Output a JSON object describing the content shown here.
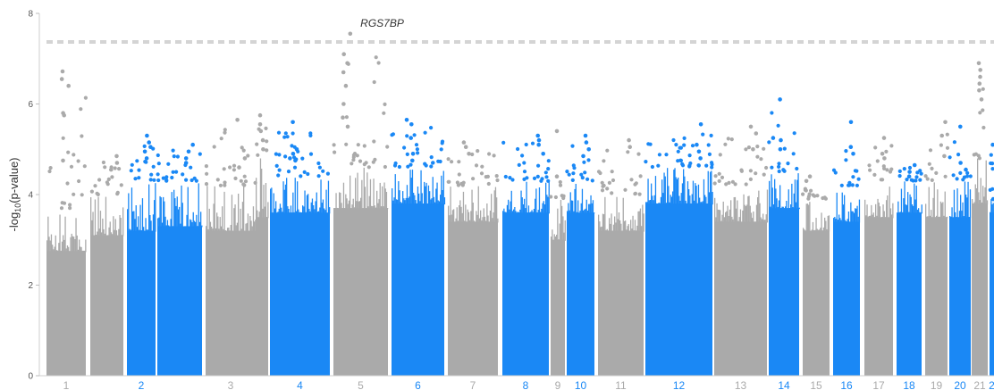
{
  "chart_data": {
    "type": "scatter",
    "variant": "manhattan",
    "title": "",
    "xlabel": "",
    "ylabel_prefix": "-log",
    "ylabel_sub": "10",
    "ylabel_suffix": "(p-value)",
    "ylim": [
      0,
      8
    ],
    "yticks": [
      "0",
      "2",
      "4",
      "6",
      "8"
    ],
    "grid": false,
    "legend": "none",
    "threshold": 7.3,
    "colors": {
      "gray": "#aaaaaa",
      "blue": "#1a88f5",
      "threshold": "#d4d4d4"
    },
    "chromosomes": [
      {
        "label": "1",
        "color": "gray",
        "min": 0,
        "band": 2.75,
        "p95": 3.7,
        "max": 6.72,
        "peaks": [
          6.72,
          6.55,
          6.4,
          5.8,
          5.75,
          4.75
        ]
      },
      {
        "label": "",
        "color": "gray",
        "min": 0,
        "band": 3.1,
        "p95": 4.0,
        "max": 4.85,
        "peaks": [
          4.85,
          4.7,
          4.55
        ]
      },
      {
        "label": "2",
        "color": "blue",
        "min": 0,
        "band": 3.2,
        "p95": 4.3,
        "max": 5.3,
        "peaks": [
          5.3,
          5.15,
          5.05,
          4.95,
          4.8
        ]
      },
      {
        "label": "",
        "color": "blue",
        "min": 0,
        "band": 3.3,
        "p95": 4.3,
        "max": 5.1,
        "peaks": [
          5.1,
          4.95,
          4.8,
          4.7
        ]
      },
      {
        "label": "3",
        "color": "gray",
        "min": 0,
        "band": 3.2,
        "p95": 4.2,
        "max": 5.65,
        "peaks": [
          5.65,
          4.8,
          4.6
        ]
      },
      {
        "label": "",
        "color": "gray",
        "min": 0,
        "band": 3.5,
        "p95": 4.8,
        "max": 5.75,
        "peaks": [
          5.75,
          5.55,
          5.4,
          5.2,
          5.0
        ]
      },
      {
        "label": "4",
        "color": "blue",
        "min": 0,
        "band": 3.6,
        "p95": 4.4,
        "max": 5.6,
        "peaks": [
          5.6,
          5.0,
          4.9,
          4.8,
          4.75
        ]
      },
      {
        "label": "5",
        "color": "gray",
        "min": 0,
        "band": 3.7,
        "p95": 4.6,
        "max": 7.55,
        "peaks": [
          7.55,
          7.1,
          6.9,
          6.7,
          6.4,
          6.0,
          5.7,
          5.5
        ]
      },
      {
        "label": "6",
        "color": "blue",
        "min": 0,
        "band": 3.8,
        "p95": 4.6,
        "max": 5.65,
        "peaks": [
          5.65,
          5.55,
          5.25,
          4.9,
          4.75
        ]
      },
      {
        "label": "7",
        "color": "gray",
        "min": 0,
        "band": 3.4,
        "p95": 4.2,
        "max": 5.15,
        "peaks": [
          5.15,
          5.05,
          4.9
        ]
      },
      {
        "label": "8",
        "color": "blue",
        "min": 0,
        "band": 3.6,
        "p95": 4.3,
        "max": 5.3,
        "peaks": [
          5.3,
          5.2,
          5.1,
          4.9
        ]
      },
      {
        "label": "9",
        "color": "gray",
        "min": 0,
        "band": 3.0,
        "p95": 3.9,
        "max": 5.4,
        "peaks": [
          5.4,
          4.4
        ]
      },
      {
        "label": "10",
        "color": "blue",
        "min": 0,
        "band": 3.6,
        "p95": 4.3,
        "max": 5.3,
        "peaks": [
          5.3,
          5.15,
          5.0,
          4.85
        ]
      },
      {
        "label": "11",
        "color": "gray",
        "min": 0,
        "band": 3.2,
        "p95": 4.0,
        "max": 5.2,
        "peaks": [
          5.2,
          5.05
        ]
      },
      {
        "label": "12",
        "color": "blue",
        "min": 0,
        "band": 3.8,
        "p95": 4.6,
        "max": 5.55,
        "peaks": [
          5.55,
          5.1,
          4.95,
          4.8
        ]
      },
      {
        "label": "13",
        "color": "gray",
        "min": 0,
        "band": 3.4,
        "p95": 4.2,
        "max": 5.5,
        "peaks": [
          5.5,
          5.35,
          5.0
        ]
      },
      {
        "label": "14",
        "color": "blue",
        "min": 0,
        "band": 3.7,
        "p95": 4.5,
        "max": 6.1,
        "peaks": [
          6.1,
          5.25,
          5.2,
          5.0
        ]
      },
      {
        "label": "15",
        "color": "gray",
        "min": 0,
        "band": 3.2,
        "p95": 3.9,
        "max": 4.4,
        "peaks": [
          4.4,
          4.3
        ]
      },
      {
        "label": "16",
        "color": "blue",
        "min": 0,
        "band": 3.4,
        "p95": 4.2,
        "max": 5.6,
        "peaks": [
          5.6,
          5.05,
          4.9
        ]
      },
      {
        "label": "17",
        "color": "gray",
        "min": 0,
        "band": 3.5,
        "p95": 4.3,
        "max": 5.25,
        "peaks": [
          5.25,
          4.9,
          4.8
        ]
      },
      {
        "label": "18",
        "color": "blue",
        "min": 0,
        "band": 3.6,
        "p95": 4.3,
        "max": 4.65,
        "peaks": [
          4.65,
          4.5,
          4.4
        ]
      },
      {
        "label": "19",
        "color": "gray",
        "min": 0,
        "band": 3.5,
        "p95": 4.3,
        "max": 5.6,
        "peaks": [
          5.6,
          5.3,
          4.85
        ]
      },
      {
        "label": "20",
        "color": "blue",
        "min": 0,
        "band": 3.5,
        "p95": 4.3,
        "max": 5.5,
        "peaks": [
          5.5,
          4.7,
          4.55
        ]
      },
      {
        "label": "21",
        "color": "gray",
        "min": 0,
        "band": 3.8,
        "p95": 4.8,
        "max": 6.9,
        "peaks": [
          6.9,
          6.75,
          6.6,
          6.45,
          6.3,
          6.1
        ]
      },
      {
        "label": "2",
        "color": "blue",
        "min": 0,
        "band": 3.6,
        "p95": 4.1,
        "max": 5.1,
        "peaks": [
          5.1,
          3.9
        ]
      }
    ],
    "annotations": [
      {
        "text": "RGS7BP",
        "chromosome_index": 7,
        "value": 7.55
      }
    ]
  }
}
